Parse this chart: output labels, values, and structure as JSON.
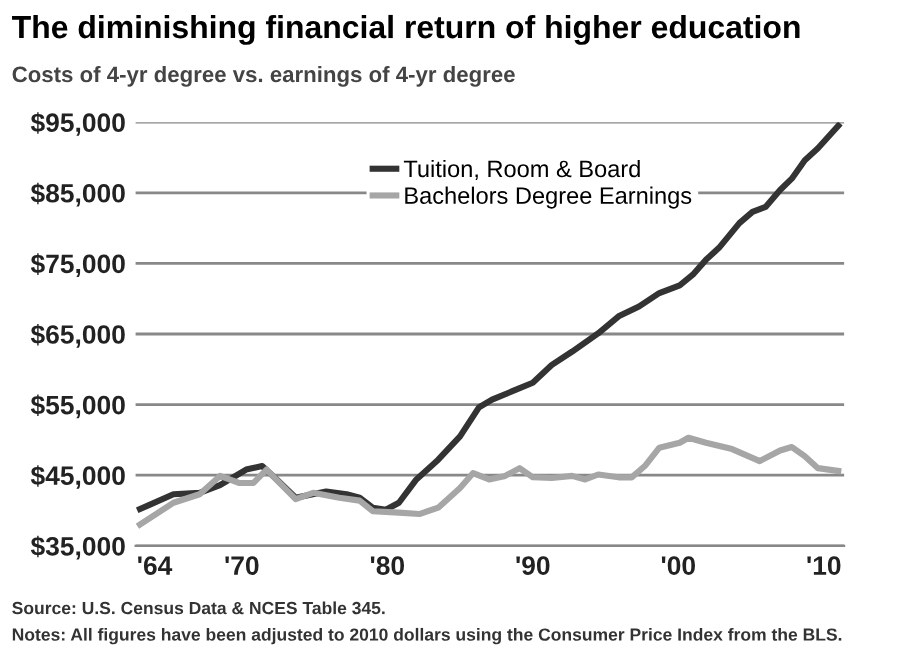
{
  "chart_data": {
    "type": "line",
    "title": "The diminishing financial return of higher education",
    "subtitle": "Costs of 4-yr degree vs. earnings of 4-yr degree",
    "annotations": [
      "Source: U.S. Census Data & NCES Table 345.",
      "Notes: All figures have been adjusted to 2010 dollars using the Consumer Price Index from the BLS."
    ],
    "series": [
      {
        "name": "Tuition, Room & Board",
        "color": "#333333",
        "x": [
          1963,
          1965.3,
          1967.1,
          1968.5,
          1970.3,
          1971.4,
          1972.4,
          1973.7,
          1975.8,
          1977.2,
          1978.1,
          1979,
          1979.9,
          1980.8,
          1982,
          1983.5,
          1985,
          1986.3,
          1987.2,
          1988.6,
          1990,
          1991.3,
          1992.7,
          1994.5,
          1995.9,
          1997.3,
          1998.7,
          2000.1,
          2001,
          2001.9,
          2002.8,
          2004.2,
          2005.1,
          2006,
          2007,
          2007.8,
          2008.7,
          2009.6,
          2011
        ],
        "values": [
          40200,
          42300,
          42500,
          43600,
          45800,
          46300,
          44400,
          41800,
          42700,
          42300,
          41800,
          40400,
          40100,
          41100,
          44400,
          47200,
          50500,
          54600,
          55700,
          56900,
          58100,
          60600,
          62500,
          65100,
          67500,
          68900,
          70800,
          71900,
          73400,
          75500,
          77200,
          80700,
          82300,
          83000,
          85400,
          87000,
          89600,
          91300,
          94500
        ]
      },
      {
        "name": "Bachelors Degree Earnings",
        "color": "#a6a6a6",
        "x": [
          1963,
          1965.3,
          1967.1,
          1968.5,
          1969.8,
          1970.8,
          1971.7,
          1972.6,
          1973.7,
          1974.9,
          1976.7,
          1978.1,
          1979,
          1980.8,
          1982.2,
          1983.5,
          1985,
          1985.9,
          1987,
          1988.1,
          1989.1,
          1990,
          1991.3,
          1992.7,
          1993.6,
          1994.5,
          1995.9,
          1996.8,
          1997.7,
          1998.7,
          2000.1,
          2000.7,
          2001.9,
          2003.7,
          2005.6,
          2007,
          2007.8,
          2008.7,
          2009.6,
          2011
        ],
        "values": [
          38000,
          41100,
          42300,
          44900,
          43900,
          43900,
          45800,
          43900,
          41600,
          42500,
          41800,
          41400,
          39900,
          39700,
          39500,
          40400,
          43200,
          45300,
          44400,
          44900,
          46000,
          44700,
          44600,
          44900,
          44400,
          45100,
          44700,
          44700,
          46300,
          48900,
          49600,
          50300,
          49600,
          48700,
          47000,
          48500,
          49000,
          47700,
          46000,
          45600
        ]
      }
    ],
    "xlim": [
      1962.7,
      2011.4
    ],
    "xticks": [
      {
        "value": 1964,
        "label": "'64"
      },
      {
        "value": 1970,
        "label": "'70"
      },
      {
        "value": 1980,
        "label": "'80"
      },
      {
        "value": 1990,
        "label": "'90"
      },
      {
        "value": 2000,
        "label": "'00"
      },
      {
        "value": 2010,
        "label": "'10"
      }
    ],
    "ylim": [
      35000,
      95000
    ],
    "yticks": [
      {
        "value": 35000,
        "label": "$35,000"
      },
      {
        "value": 45000,
        "label": "$45,000"
      },
      {
        "value": 55000,
        "label": "$55,000"
      },
      {
        "value": 65000,
        "label": "$65,000"
      },
      {
        "value": 75000,
        "label": "$75,000"
      },
      {
        "value": 85000,
        "label": "$85,000"
      },
      {
        "value": 95000,
        "label": "$95,000"
      }
    ],
    "grid": "y",
    "legend": "top"
  }
}
